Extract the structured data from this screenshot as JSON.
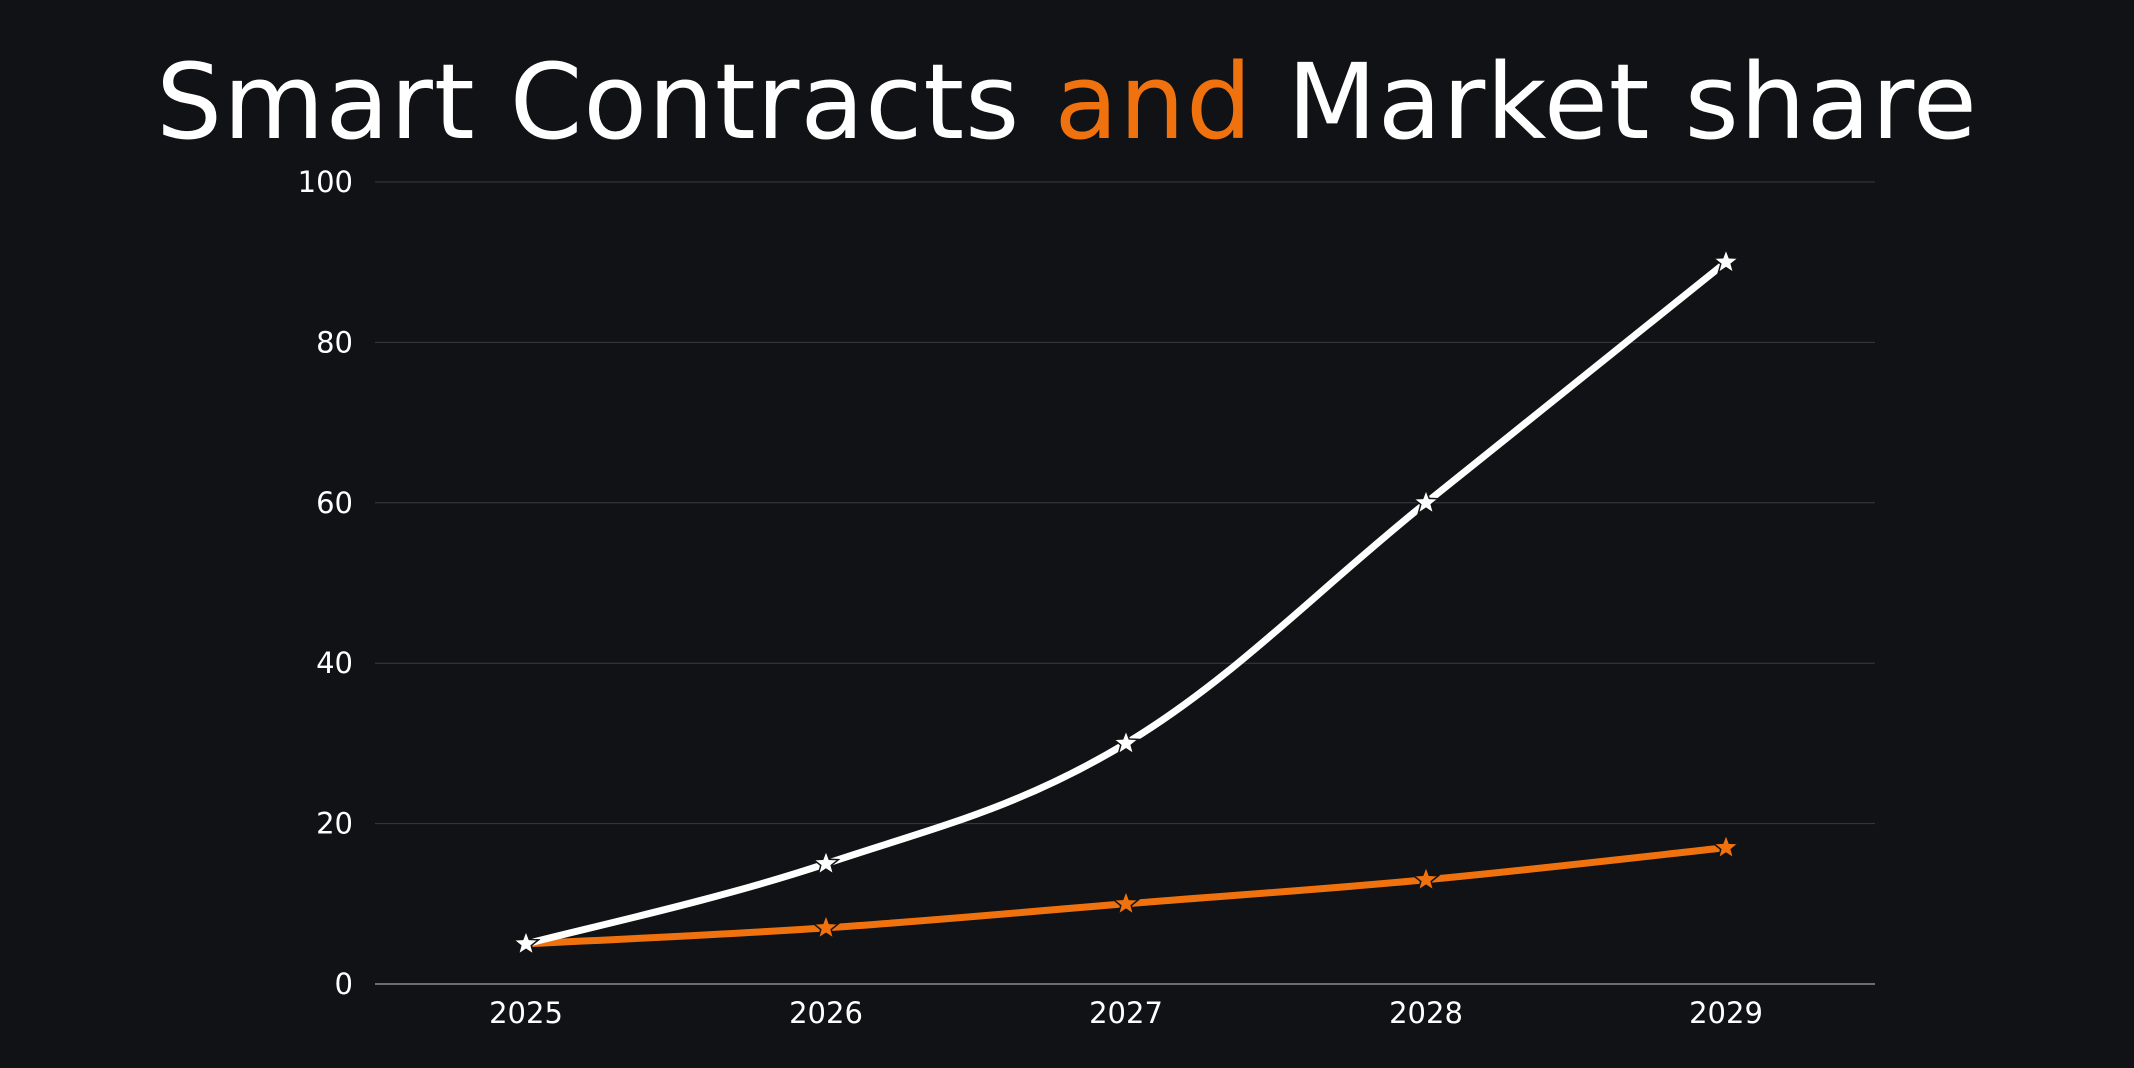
{
  "title": {
    "part1": "Smart Contracts ",
    "accent": "and",
    "part2": " Market share"
  },
  "colors": {
    "background": "#111215",
    "accent": "#f0720f",
    "primary_series": "#ffffff",
    "grid": "#3a3b3f"
  },
  "chart_data": {
    "type": "line",
    "title": "Smart Contracts and Market share",
    "xlabel": "",
    "ylabel": "",
    "categories": [
      "2025",
      "2026",
      "2027",
      "2028",
      "2029"
    ],
    "ylim": [
      0,
      100
    ],
    "yticks": [
      0,
      20,
      40,
      60,
      80,
      100
    ],
    "grid": true,
    "legend": "none",
    "marker": "star",
    "smooth": true,
    "series": [
      {
        "color": "#ffffff",
        "values": [
          5,
          15,
          30,
          60,
          90
        ]
      },
      {
        "color": "#f0720f",
        "values": [
          5,
          7,
          10,
          13,
          17
        ]
      }
    ]
  }
}
